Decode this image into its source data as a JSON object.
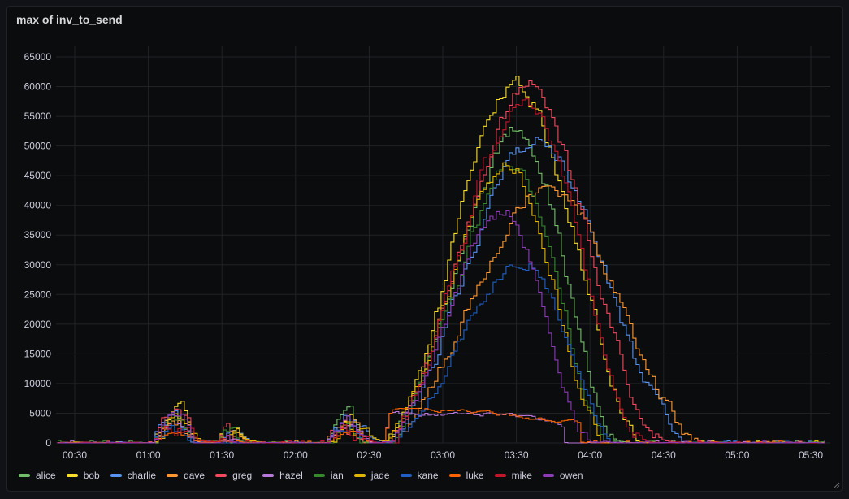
{
  "panel": {
    "title": "max of inv_to_send"
  },
  "chart_data": {
    "type": "line",
    "title": "max of inv_to_send",
    "x_ticks": [
      "00:30",
      "01:00",
      "01:30",
      "02:00",
      "02:30",
      "03:00",
      "03:30",
      "04:00",
      "04:30",
      "05:00",
      "05:30"
    ],
    "y_ticks": [
      0,
      5000,
      10000,
      15000,
      20000,
      25000,
      30000,
      35000,
      40000,
      45000,
      50000,
      55000,
      60000,
      65000
    ],
    "ylim": [
      0,
      65000
    ],
    "xlim": [
      "00:23",
      "05:36"
    ],
    "grid": true,
    "legend_position": "bottom-left",
    "series": [
      {
        "name": "alice",
        "color": "#73bf69",
        "bumps": [
          [
            66,
            4000
          ],
          [
            149,
            900
          ],
          [
            201,
            3000
          ]
        ],
        "peak": 53000,
        "pt": 210,
        "rs": 161,
        "re": 250,
        "noise": 2500
      },
      {
        "name": "bob",
        "color": "#fade2a",
        "bumps": [
          [
            66,
            5500
          ],
          [
            149,
            1200
          ],
          [
            201,
            3500
          ]
        ],
        "peak": 60000,
        "pt": 208,
        "rs": 161,
        "re": 262,
        "noise": 2600
      },
      {
        "name": "charlie",
        "color": "#5794f2",
        "bumps": [
          [
            66,
            4500
          ],
          [
            149,
            800
          ],
          [
            201,
            3000
          ]
        ],
        "peak": 51000,
        "pt": 216,
        "rs": 158,
        "re": 279,
        "noise": 2400
      },
      {
        "name": "dave",
        "color": "#ff9830",
        "bumps": [
          [
            66,
            3800
          ],
          [
            149,
            1000
          ],
          [
            201,
            3400
          ]
        ],
        "peak": 44000,
        "pt": 221,
        "rs": 161,
        "re": 285,
        "noise": 2200
      },
      {
        "name": "greg",
        "color": "#f2495c",
        "bumps": [
          [
            66,
            5000
          ],
          [
            149,
            1000
          ],
          [
            201,
            3200
          ]
        ],
        "peak": 59000,
        "pt": 213,
        "rs": 161,
        "re": 269,
        "noise": 2600
      },
      {
        "name": "hazel",
        "color": "#b877d9",
        "bumps": [
          [
            66,
            3000
          ],
          [
            149,
            700
          ],
          [
            201,
            2800
          ]
        ],
        "flat": 5000,
        "pt": 205,
        "rs": 161,
        "re": 228,
        "noise": 700
      },
      {
        "name": "ian",
        "color": "#37872d",
        "bumps": [
          [
            66,
            3500
          ],
          [
            149,
            700
          ],
          [
            201,
            2600
          ]
        ],
        "peak": 46000,
        "pt": 207,
        "rs": 161,
        "re": 248,
        "noise": 2200
      },
      {
        "name": "jade",
        "color": "#e0b400",
        "bumps": [
          [
            66,
            4200
          ],
          [
            149,
            900
          ],
          [
            201,
            3100
          ]
        ],
        "peak": 47000,
        "pt": 205,
        "rs": 161,
        "re": 246,
        "noise": 2300
      },
      {
        "name": "kane",
        "color": "#1f60c4",
        "bumps": [
          [
            66,
            2000
          ],
          [
            149,
            500
          ],
          [
            201,
            2300
          ]
        ],
        "peak": 31000,
        "pt": 212,
        "rs": 165,
        "re": 250,
        "noise": 1500
      },
      {
        "name": "luke",
        "color": "#fa6400",
        "bumps": [
          [
            66,
            1500
          ],
          [
            149,
            400
          ],
          [
            201,
            2000
          ]
        ],
        "flat": 5500,
        "pt": 183,
        "rs": 162,
        "re": 235,
        "noise": 500
      },
      {
        "name": "mike",
        "color": "#c4162a",
        "bumps": [
          [
            66,
            2500
          ],
          [
            149,
            600
          ],
          [
            201,
            2500
          ]
        ],
        "peak": 58000,
        "pt": 212,
        "rs": 161,
        "re": 262,
        "noise": 2500
      },
      {
        "name": "owen",
        "color": "#8f3bb8",
        "bumps": [
          [
            66,
            3200
          ],
          [
            149,
            800
          ],
          [
            201,
            2900
          ]
        ],
        "peak": 39000,
        "pt": 203,
        "rs": 161,
        "re": 240,
        "noise": 2000
      }
    ]
  }
}
